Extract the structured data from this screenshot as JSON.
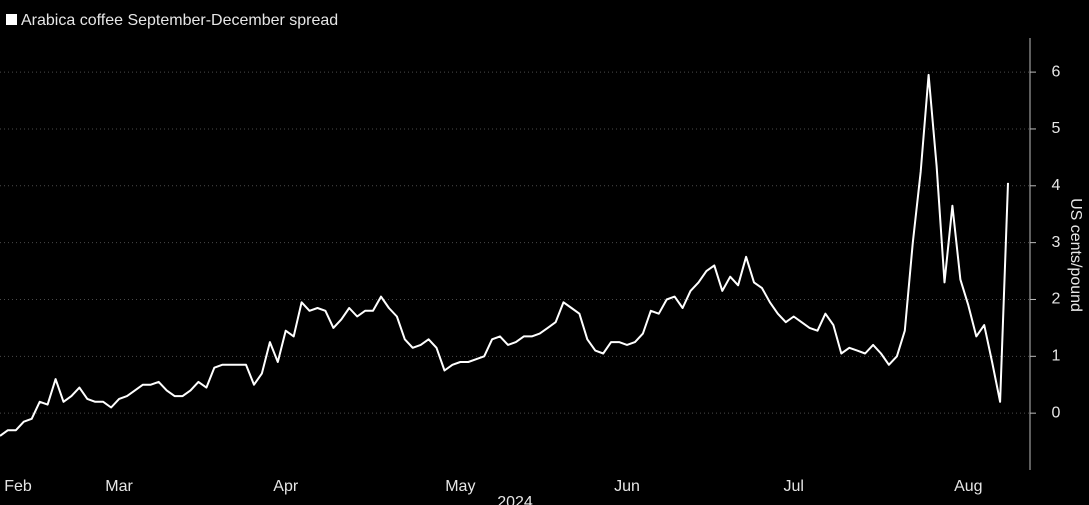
{
  "chart_data": {
    "type": "line",
    "title": "Arabica coffee September-December spread",
    "y_label": "US cents/pound",
    "x_label": "2024",
    "color": "#ffffff",
    "grid": true,
    "categories": [
      null,
      null,
      "Feb",
      null,
      null,
      null,
      null,
      null,
      null,
      null,
      null,
      null,
      null,
      null,
      null,
      "Mar",
      null,
      null,
      null,
      null,
      null,
      null,
      null,
      null,
      null,
      null,
      null,
      null,
      null,
      null,
      null,
      null,
      null,
      null,
      null,
      null,
      "Apr",
      null,
      null,
      null,
      null,
      null,
      null,
      null,
      null,
      null,
      null,
      null,
      null,
      null,
      null,
      null,
      null,
      null,
      null,
      null,
      null,
      null,
      "May",
      null,
      null,
      null,
      null,
      null,
      null,
      null,
      null,
      null,
      null,
      null,
      null,
      null,
      null,
      null,
      null,
      null,
      null,
      null,
      null,
      "Jun",
      null,
      null,
      null,
      null,
      null,
      null,
      null,
      null,
      null,
      null,
      null,
      null,
      null,
      null,
      null,
      null,
      null,
      null,
      null,
      null,
      "Jul",
      null,
      null,
      null,
      null,
      null,
      null,
      null,
      null,
      null,
      null,
      null,
      null,
      null,
      null,
      null,
      null,
      null,
      null,
      null,
      null,
      null,
      "Aug",
      null,
      null,
      null,
      null,
      null
    ],
    "values": [
      -0.4,
      -0.3,
      -0.3,
      -0.15,
      -0.1,
      0.2,
      0.15,
      0.6,
      0.2,
      0.3,
      0.45,
      0.25,
      0.2,
      0.2,
      0.1,
      0.25,
      0.3,
      0.4,
      0.5,
      0.5,
      0.55,
      0.4,
      0.3,
      0.3,
      0.4,
      0.55,
      0.45,
      0.8,
      0.85,
      0.85,
      0.85,
      0.85,
      0.5,
      0.7,
      1.25,
      0.9,
      1.45,
      1.35,
      1.95,
      1.8,
      1.85,
      1.8,
      1.5,
      1.65,
      1.85,
      1.7,
      1.8,
      1.8,
      2.05,
      1.85,
      1.7,
      1.3,
      1.15,
      1.2,
      1.3,
      1.15,
      0.75,
      0.85,
      0.9,
      0.9,
      0.95,
      1.0,
      1.3,
      1.35,
      1.2,
      1.25,
      1.35,
      1.35,
      1.4,
      1.5,
      1.6,
      1.95,
      1.85,
      1.75,
      1.3,
      1.1,
      1.05,
      1.25,
      1.25,
      1.2,
      1.25,
      1.4,
      1.8,
      1.75,
      2.0,
      2.05,
      1.85,
      2.15,
      2.3,
      2.5,
      2.6,
      2.15,
      2.4,
      2.25,
      2.75,
      2.3,
      2.2,
      1.95,
      1.75,
      1.6,
      1.7,
      1.6,
      1.5,
      1.45,
      1.75,
      1.55,
      1.05,
      1.15,
      1.1,
      1.05,
      1.2,
      1.05,
      0.85,
      1.0,
      1.45,
      3.0,
      4.25,
      5.95,
      4.35,
      2.3,
      3.65,
      2.35,
      1.9,
      1.35,
      1.55,
      0.9,
      0.2,
      4.05
    ],
    "ylim": [
      -1,
      6.6
    ],
    "yticks": [
      0,
      1,
      2,
      3,
      4,
      5,
      6
    ]
  }
}
